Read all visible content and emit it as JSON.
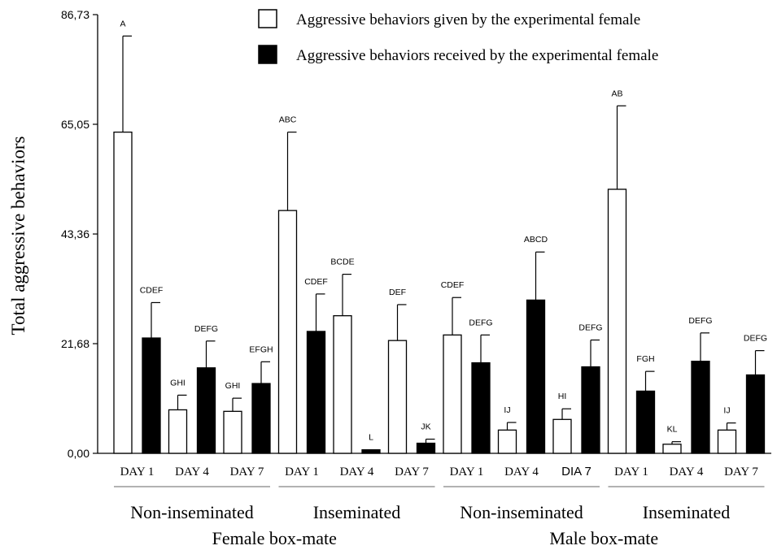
{
  "chart_data": {
    "type": "bar",
    "ylabel": "Total aggressive behaviors",
    "ylim": [
      0,
      86.73
    ],
    "yticks": [
      0,
      21.68,
      43.36,
      65.05,
      86.73
    ],
    "ytick_labels": [
      "0,00",
      "21,68",
      "43,36",
      "65,05",
      "86,73"
    ],
    "legend": [
      {
        "label": "Aggressive behaviors given by the experimental female",
        "fill": "#ffffff"
      },
      {
        "label": "Aggressive behaviors received by the experimental female",
        "fill": "#000000"
      }
    ],
    "groups": [
      {
        "main": "Female box-mate",
        "subs": [
          {
            "label": "Non-inseminated",
            "days": [
              {
                "day": "DAY 1",
                "given": 63.5,
                "given_err": 19.0,
                "given_letters": "A",
                "received": 22.8,
                "received_err": 7.0,
                "received_letters": "CDEF"
              },
              {
                "day": "DAY 4",
                "given": 8.6,
                "given_err": 2.9,
                "given_letters": "GHI",
                "received": 16.9,
                "received_err": 5.3,
                "received_letters": "DEFG"
              },
              {
                "day": "DAY 7",
                "given": 8.3,
                "given_err": 2.6,
                "given_letters": "GHI",
                "received": 13.8,
                "received_err": 4.3,
                "received_letters": "EFGH"
              }
            ]
          },
          {
            "label": "Inseminated",
            "days": [
              {
                "day": "DAY 1",
                "given": 48.0,
                "given_err": 15.5,
                "given_letters": "ABC",
                "received": 24.1,
                "received_err": 7.4,
                "received_letters": "CDEF"
              },
              {
                "day": "DAY 4",
                "given": 27.2,
                "given_err": 8.2,
                "given_letters": "BCDE",
                "received": 0.7,
                "received_err": 0.0,
                "received_letters": "L"
              },
              {
                "day": "DAY 7",
                "given": 22.3,
                "given_err": 7.1,
                "given_letters": "DEF",
                "received": 2.0,
                "received_err": 0.8,
                "received_letters": "JK"
              }
            ]
          }
        ]
      },
      {
        "main": "Male box-mate",
        "subs": [
          {
            "label": "Non-inseminated",
            "days": [
              {
                "day": "DAY 1",
                "given": 23.4,
                "given_err": 7.4,
                "given_letters": "CDEF",
                "received": 17.9,
                "received_err": 5.5,
                "received_letters": "DEFG"
              },
              {
                "day": "DAY 4",
                "given": 4.6,
                "given_err": 1.5,
                "given_letters": "IJ",
                "received": 30.3,
                "received_err": 9.5,
                "received_letters": "ABCD"
              },
              {
                "day": "DIA 7",
                "given": 6.7,
                "given_err": 2.1,
                "given_letters": "HI",
                "received": 17.1,
                "received_err": 5.3,
                "received_letters": "DEFG"
              }
            ]
          },
          {
            "label": "Inseminated",
            "days": [
              {
                "day": "DAY 1",
                "given": 52.2,
                "given_err": 16.5,
                "given_letters": "AB",
                "received": 12.3,
                "received_err": 3.9,
                "received_letters": "FGH"
              },
              {
                "day": "DAY 4",
                "given": 1.8,
                "given_err": 0.5,
                "given_letters": "KL",
                "received": 18.2,
                "received_err": 5.6,
                "received_letters": "DEFG"
              },
              {
                "day": "DAY 7",
                "given": 4.6,
                "given_err": 1.4,
                "given_letters": "IJ",
                "received": 15.5,
                "received_err": 4.8,
                "received_letters": "DEFG"
              }
            ]
          }
        ]
      }
    ]
  }
}
